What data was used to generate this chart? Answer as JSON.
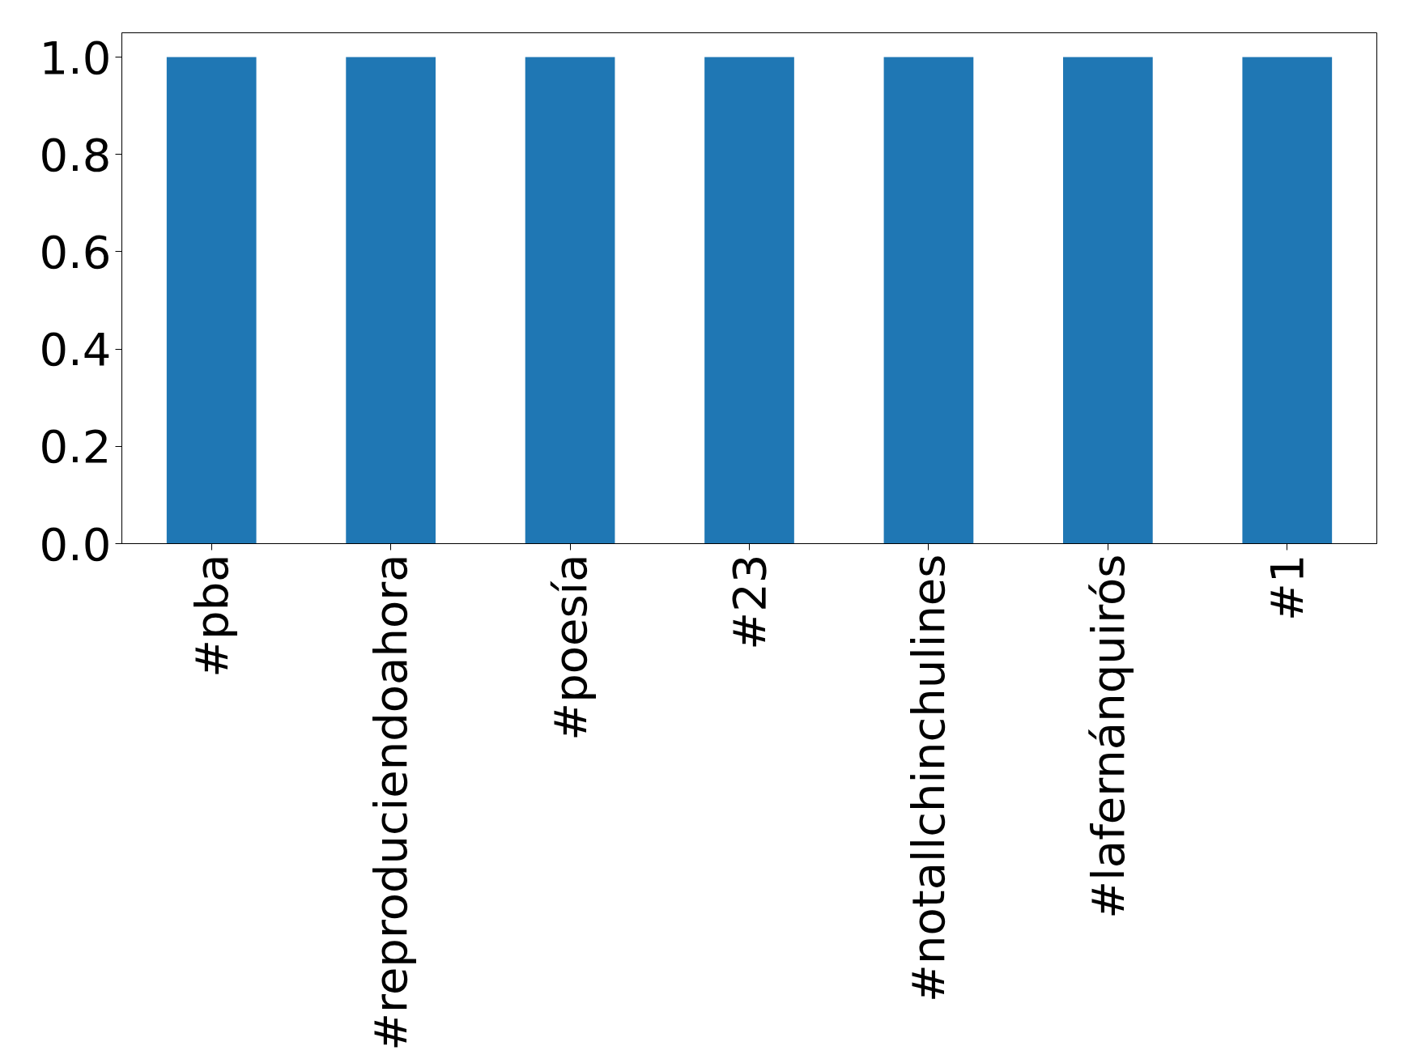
{
  "chart_data": {
    "type": "bar",
    "categories": [
      "#pba",
      "#reproduciendoahora",
      "#poesía",
      "#23",
      "#notallchinchulines",
      "#lafernánquirós",
      "#1"
    ],
    "values": [
      1.0,
      1.0,
      1.0,
      1.0,
      1.0,
      1.0,
      1.0
    ],
    "color": "#1f77b4",
    "ylim": [
      0,
      1.05
    ],
    "yticks": [
      {
        "value": 0,
        "label": "0.0"
      },
      {
        "value": 0.2,
        "label": "0.2"
      },
      {
        "value": 0.4,
        "label": "0.4"
      },
      {
        "value": 0.6,
        "label": "0.6"
      },
      {
        "value": 0.8,
        "label": "0.8"
      },
      {
        "value": 1.0,
        "label": "1.0"
      }
    ],
    "grid": false
  }
}
